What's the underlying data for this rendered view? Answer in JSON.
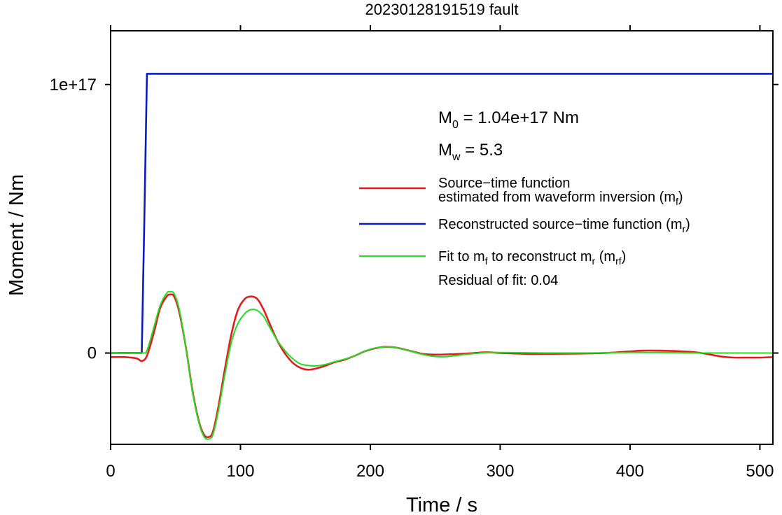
{
  "chart_data": {
    "type": "line",
    "title": "20230128191519 fault",
    "xlabel": "Time / s",
    "ylabel": "Moment / Nm",
    "xlim": [
      0,
      510
    ],
    "ylim": [
      -3.4e+16,
      1.2e+17
    ],
    "x_ticks": [
      0,
      100,
      200,
      300,
      400,
      500
    ],
    "x_tick_labels": [
      "0",
      "100",
      "200",
      "300",
      "400",
      "500"
    ],
    "y_ticks": [
      0,
      1e+17
    ],
    "y_tick_labels": [
      "0",
      "1e+17"
    ],
    "grid": false,
    "legend_position": "right",
    "annotations": {
      "m0": {
        "prefix": "M",
        "sub": "0",
        "text": " = 1.04e+17 Nm"
      },
      "mw": {
        "prefix": "M",
        "sub": "w",
        "text": " = 5.3"
      },
      "residual": "Residual of fit: 0.04"
    },
    "legend": [
      {
        "color": "#e41a1c",
        "lines": [
          [
            {
              "t": "Source−time function"
            }
          ],
          [
            {
              "t": "estimated from waveform inversion (m"
            },
            {
              "t": "f",
              "sub": true
            },
            {
              "t": ")"
            }
          ]
        ]
      },
      {
        "color": "#0a1bbf",
        "lines": [
          [
            {
              "t": "Reconstructed source−time function (m"
            },
            {
              "t": "r",
              "sub": true
            },
            {
              "t": ")"
            }
          ]
        ]
      },
      {
        "color": "#22dd22",
        "lines": [
          [
            {
              "t": "Fit to m"
            },
            {
              "t": "f",
              "sub": true
            },
            {
              "t": " to reconstruct m"
            },
            {
              "t": "r",
              "sub": true
            },
            {
              "t": " (m"
            },
            {
              "t": "rf",
              "sub": true
            },
            {
              "t": ")"
            }
          ]
        ]
      }
    ],
    "series": [
      {
        "name": "Source−time function estimated from waveform inversion (mf)",
        "color": "#e41a1c",
        "x": [
          0,
          10,
          20,
          24,
          28,
          33,
          38,
          43,
          46,
          49,
          53,
          58,
          63,
          68,
          72,
          76,
          79,
          83,
          88,
          93,
          98,
          103,
          107,
          111,
          114,
          118,
          122,
          128,
          134,
          140,
          146,
          152,
          158,
          165,
          172,
          180,
          188,
          196,
          204,
          212,
          220,
          230,
          240,
          250,
          260,
          270,
          280,
          290,
          300,
          320,
          340,
          360,
          380,
          400,
          410,
          420,
          430,
          440,
          450,
          460,
          470,
          480,
          490,
          500,
          510
        ],
        "y": [
          -1500000000000000.0,
          -1500000000000000.0,
          -2000000000000000.0,
          -3000000000000000.0,
          -1000000000000000.0,
          7000000000000000.0,
          1.65e+16,
          2.1e+16,
          2.18e+16,
          2.1e+16,
          1.5e+16,
          2000000000000000.0,
          -1.4e+16,
          -2.55e+16,
          -3.05e+16,
          -3.12e+16,
          -2.9e+16,
          -2e+16,
          -6000000000000000.0,
          7000000000000000.0,
          1.6e+16,
          2e+16,
          2.1e+16,
          2.08e+16,
          1.95e+16,
          1.6e+16,
          1.15e+16,
          5000000000000000.0,
          0,
          -3500000000000000.0,
          -5500000000000000.0,
          -6200000000000000.0,
          -5800000000000000.0,
          -4800000000000000.0,
          -3500000000000000.0,
          -2500000000000000.0,
          -1000000000000000.0,
          700000000000000.0,
          1800000000000000.0,
          2300000000000000.0,
          2000000000000000.0,
          900000000000000.0,
          -300000000000000.0,
          -600000000000000.0,
          -500000000000000.0,
          -300000000000000.0,
          0,
          300000000000000.0,
          0,
          -300000000000000.0,
          -300000000000000.0,
          -200000000000000.0,
          0,
          600000000000000.0,
          900000000000000.0,
          900000000000000.0,
          800000000000000.0,
          600000000000000.0,
          300000000000000.0,
          -400000000000000.0,
          -1300000000000000.0,
          -1700000000000000.0,
          -1700000000000000.0,
          -1700000000000000.0,
          -1500000000000000.0
        ]
      },
      {
        "name": "Reconstructed source−time function (mr)",
        "color": "#0a1bbf",
        "x": [
          0,
          24,
          26,
          28,
          510
        ],
        "y": [
          0,
          0,
          5e+16,
          1.04e+17,
          1.04e+17
        ]
      },
      {
        "name": "Fit to mf to reconstruct mr (mrf)",
        "color": "#22dd22",
        "x": [
          0,
          24,
          28,
          33,
          38,
          43,
          46,
          49,
          53,
          58,
          63,
          68,
          72,
          76,
          79,
          83,
          88,
          93,
          98,
          103,
          107,
          111,
          114,
          118,
          122,
          128,
          134,
          140,
          146,
          152,
          158,
          165,
          172,
          180,
          188,
          196,
          204,
          212,
          220,
          230,
          240,
          250,
          260,
          270,
          280,
          290,
          300,
          320,
          340,
          360,
          380,
          400,
          420,
          440,
          460,
          480,
          500,
          510
        ],
        "y": [
          0,
          0,
          1000000000000000.0,
          9000000000000000.0,
          1.75e+16,
          2.22e+16,
          2.28e+16,
          2.2e+16,
          1.6e+16,
          2000000000000000.0,
          -1.45e+16,
          -2.6e+16,
          -3.12e+16,
          -3.2e+16,
          -3e+16,
          -2.15e+16,
          -8000000000000000.0,
          4000000000000000.0,
          1.1e+16,
          1.45e+16,
          1.6e+16,
          1.62e+16,
          1.55e+16,
          1.35e+16,
          1e+16,
          5000000000000000.0,
          1000000000000000.0,
          -2000000000000000.0,
          -4000000000000000.0,
          -4600000000000000.0,
          -4800000000000000.0,
          -4300000000000000.0,
          -3300000000000000.0,
          -2300000000000000.0,
          -1000000000000000.0,
          800000000000000.0,
          1900000000000000.0,
          2300000000000000.0,
          2000000000000000.0,
          800000000000000.0,
          -500000000000000.0,
          -1300000000000000.0,
          -1300000000000000.0,
          -700000000000000.0,
          -200000000000000.0,
          200000000000000.0,
          200000000000000.0,
          100000000000000.0,
          0,
          0,
          100000000000000.0,
          200000000000000.0,
          200000000000000.0,
          100000000000000.0,
          0,
          0,
          0,
          0
        ]
      }
    ]
  }
}
